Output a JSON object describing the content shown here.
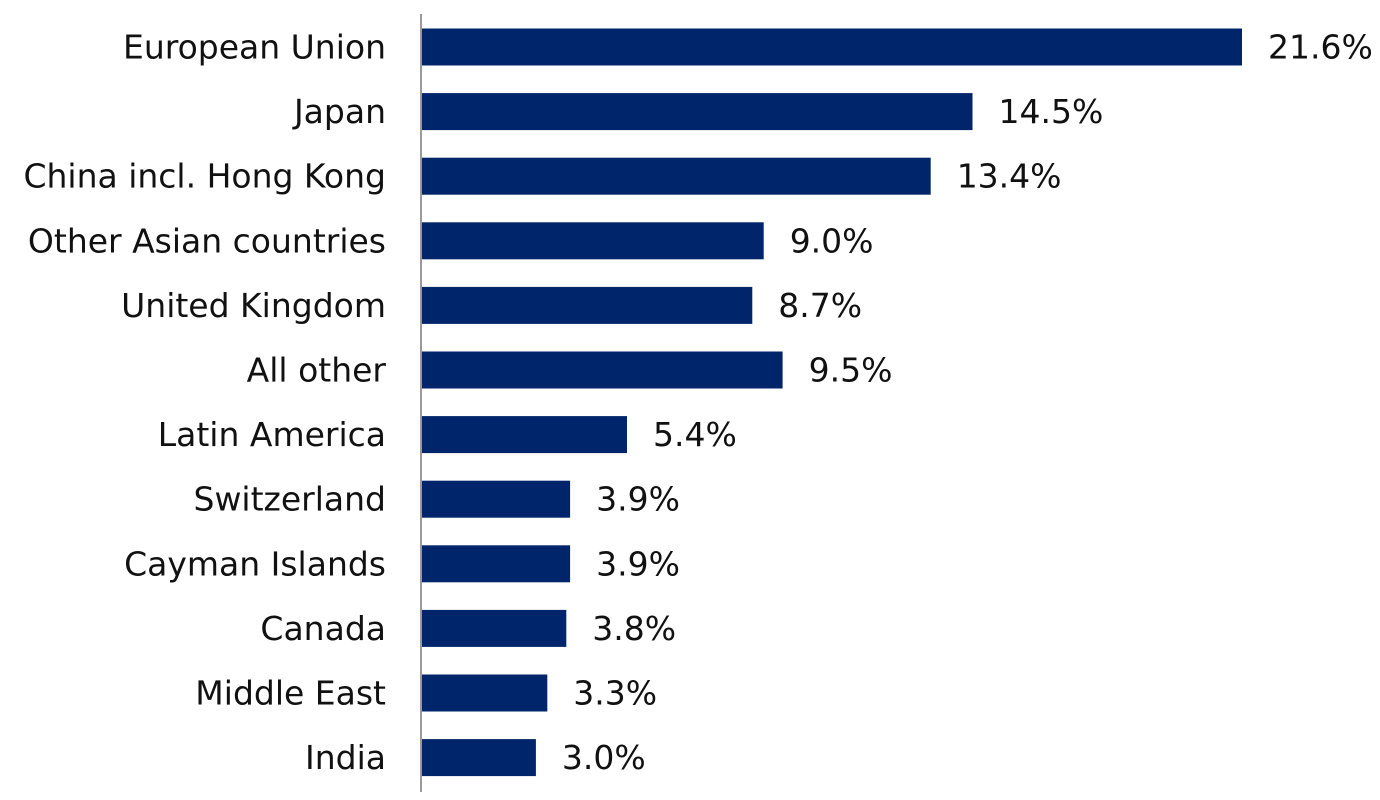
{
  "chart_data": {
    "type": "bar",
    "orientation": "horizontal",
    "categories": [
      "European Union",
      "Japan",
      "China incl. Hong Kong",
      "Other Asian countries",
      "United Kingdom",
      "All other",
      "Latin America",
      "Switzerland",
      "Cayman Islands",
      "Canada",
      "Middle East",
      "India"
    ],
    "values": [
      21.6,
      14.5,
      13.4,
      9.0,
      8.7,
      9.5,
      5.4,
      3.9,
      3.9,
      3.8,
      3.3,
      3.0
    ],
    "data_labels": [
      "21.6%",
      "14.5%",
      "13.4%",
      "9.0%",
      "8.7%",
      "9.5%",
      "5.4%",
      "3.9%",
      "3.9%",
      "3.8%",
      "3.3%",
      "3.0%"
    ],
    "title": "",
    "xlabel": "",
    "ylabel": "",
    "xlim": [
      0,
      21.6
    ],
    "grid": false,
    "legend": "none",
    "bar_color": "#00256a"
  }
}
